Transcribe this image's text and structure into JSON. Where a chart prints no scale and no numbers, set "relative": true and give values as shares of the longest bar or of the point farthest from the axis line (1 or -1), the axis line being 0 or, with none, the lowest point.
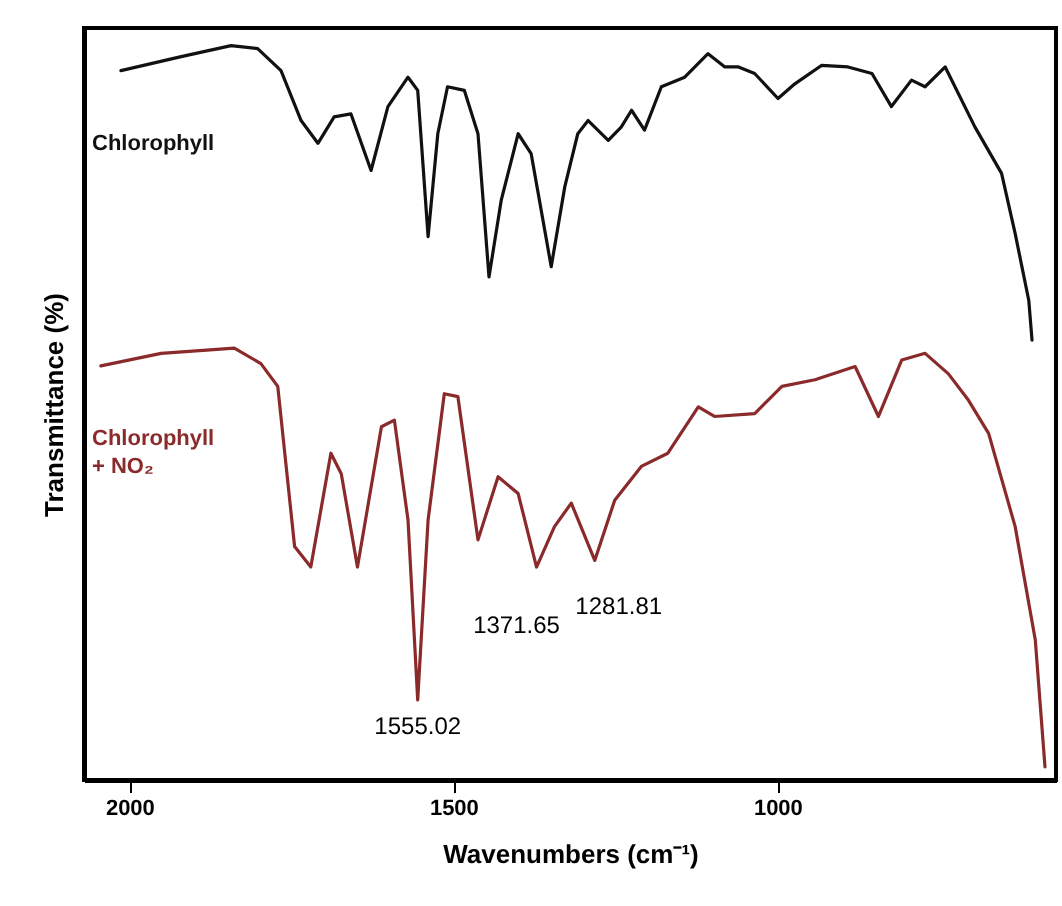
{
  "chart_data": {
    "type": "line",
    "relative": true,
    "xlabel": "Wavenumbers (cm⁻¹)",
    "ylabel": "Transmittance (%)",
    "xlim": [
      2070,
      570
    ],
    "xticks": [
      2000,
      1500,
      1000
    ],
    "grid": false,
    "marker": "none",
    "line_style": "solid",
    "series": [
      {
        "name": "Chlorophyll",
        "color": "#111111",
        "x": [
          2013,
          1920,
          1843,
          1802,
          1766,
          1735,
          1709,
          1684,
          1658,
          1627,
          1601,
          1570,
          1555,
          1539,
          1524,
          1509,
          1483,
          1462,
          1445,
          1426,
          1400,
          1380,
          1349,
          1328,
          1308,
          1292,
          1261,
          1241,
          1225,
          1205,
          1179,
          1143,
          1107,
          1081,
          1060,
          1035,
          999,
          973,
          932,
          891,
          854,
          824,
          793,
          772,
          741,
          695,
          654,
          633,
          612,
          607
        ],
        "values": [
          0.966,
          0.985,
          1.0,
          0.996,
          0.966,
          0.898,
          0.867,
          0.903,
          0.907,
          0.83,
          0.917,
          0.957,
          0.939,
          0.74,
          0.88,
          0.944,
          0.939,
          0.88,
          0.685,
          0.79,
          0.88,
          0.853,
          0.699,
          0.808,
          0.88,
          0.898,
          0.871,
          0.889,
          0.912,
          0.885,
          0.944,
          0.957,
          0.989,
          0.971,
          0.971,
          0.962,
          0.928,
          0.948,
          0.973,
          0.971,
          0.962,
          0.917,
          0.953,
          0.944,
          0.971,
          0.889,
          0.826,
          0.744,
          0.653,
          0.599
        ]
      },
      {
        "name": "Chlorophyll + NO₂",
        "color": "#8b2a2a",
        "x": [
          2044,
          1951,
          1838,
          1797,
          1771,
          1745,
          1720,
          1689,
          1673,
          1648,
          1611,
          1591,
          1570,
          1555.02,
          1539,
          1514,
          1493,
          1462,
          1431,
          1400,
          1371.65,
          1344,
          1318,
          1281.81,
          1251,
          1210,
          1169,
          1122,
          1097,
          1035,
          993,
          942,
          880,
          844,
          808,
          772,
          736,
          705,
          674,
          633,
          602,
          587
        ],
        "values": [
          0.564,
          0.581,
          0.588,
          0.567,
          0.536,
          0.318,
          0.29,
          0.445,
          0.417,
          0.29,
          0.481,
          0.49,
          0.354,
          0.109,
          0.354,
          0.526,
          0.522,
          0.327,
          0.413,
          0.39,
          0.29,
          0.345,
          0.377,
          0.299,
          0.381,
          0.427,
          0.445,
          0.508,
          0.495,
          0.499,
          0.536,
          0.545,
          0.563,
          0.495,
          0.572,
          0.581,
          0.553,
          0.517,
          0.472,
          0.345,
          0.191,
          0.018
        ]
      }
    ],
    "annotations": [
      {
        "text": "1555.02",
        "x": 1555.02,
        "y": 0.109
      },
      {
        "text": "1371.65",
        "x": 1371.65,
        "y": 0.29
      },
      {
        "text": "1281.81",
        "x": 1281.81,
        "y": 0.299
      }
    ]
  }
}
